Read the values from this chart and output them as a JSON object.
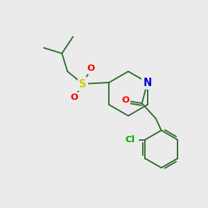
{
  "bg_color": "#ebebeb",
  "bond_color": "#2d6b2d",
  "atoms": {
    "S": {
      "color": "#cccc00"
    },
    "O": {
      "color": "#ff0000"
    },
    "N": {
      "color": "#0000cc"
    },
    "Cl": {
      "color": "#00aa00"
    }
  },
  "line_width": 1.4,
  "font_size": 10.5,
  "figsize": [
    3.0,
    3.0
  ],
  "dpi": 100
}
